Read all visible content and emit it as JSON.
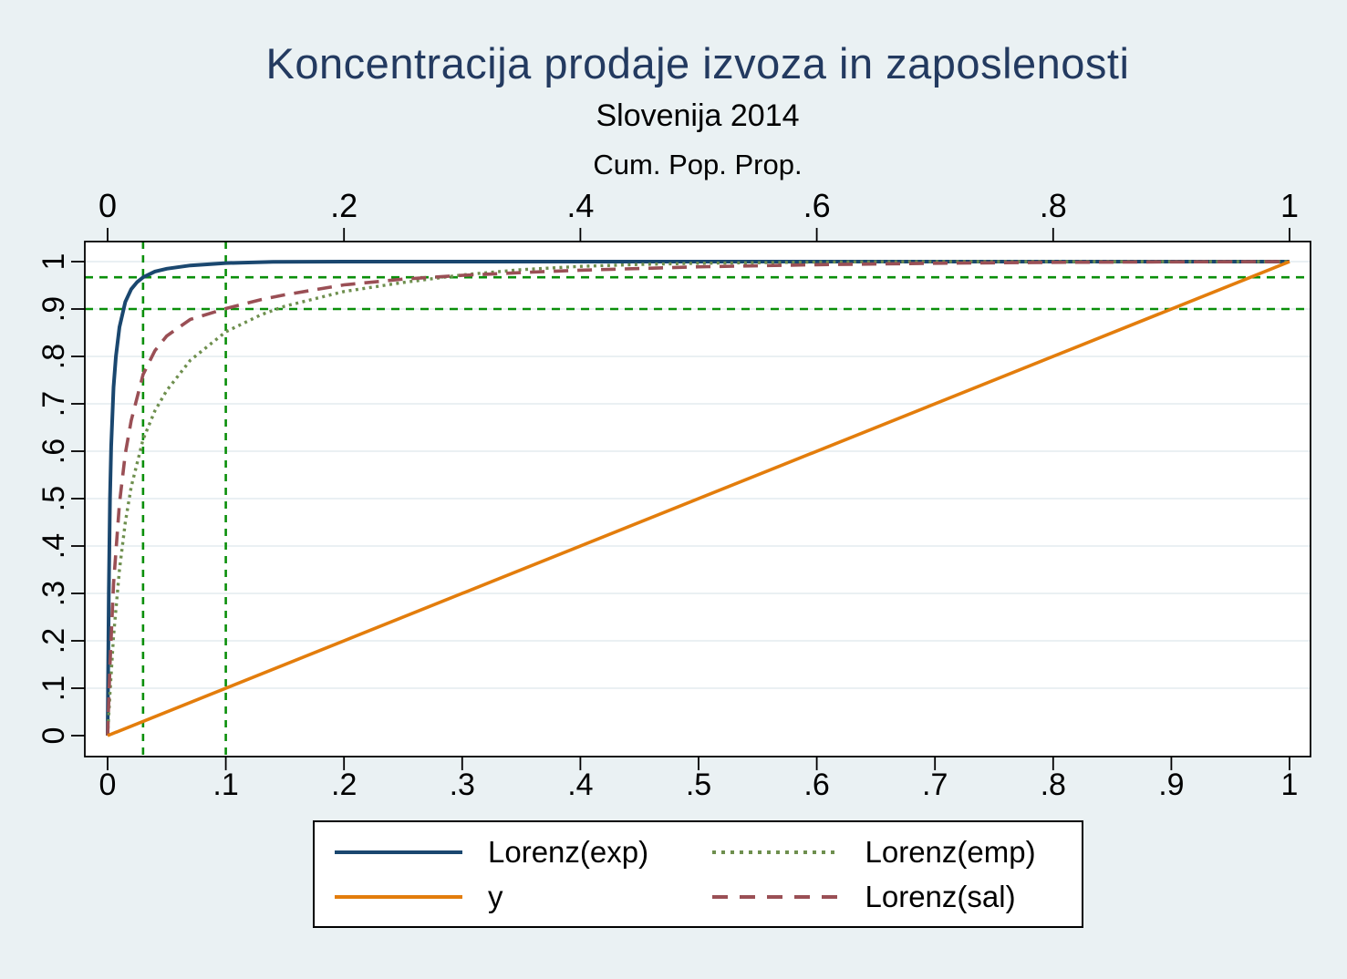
{
  "figure": {
    "colors": {
      "background": "#eaf1f3",
      "plot_background": "#ffffff",
      "border": "#000000",
      "grid": "#e4ecef",
      "title": "#233a60"
    }
  },
  "chart_data": {
    "type": "line",
    "title": "Koncentracija prodaje izvoza in zaposlenosti",
    "subtitle": "Slovenija 2014",
    "top_axis": {
      "title": "Cum. Pop. Prop.",
      "tick_labels": [
        "0",
        ".2",
        ".4",
        ".6",
        ".8",
        "1"
      ],
      "tick_values": [
        0,
        0.2,
        0.4,
        0.6,
        0.8,
        1
      ]
    },
    "bottom_axis": {
      "tick_labels": [
        "0",
        ".1",
        ".2",
        ".3",
        ".4",
        ".5",
        ".6",
        ".7",
        ".8",
        ".9",
        "1"
      ],
      "tick_values": [
        0,
        0.1,
        0.2,
        0.3,
        0.4,
        0.5,
        0.6,
        0.7,
        0.8,
        0.9,
        1
      ]
    },
    "left_axis": {
      "tick_labels": [
        "0",
        ".1",
        ".2",
        ".3",
        ".4",
        ".5",
        ".6",
        ".7",
        ".8",
        ".9",
        "1"
      ],
      "tick_values": [
        0,
        0.1,
        0.2,
        0.3,
        0.4,
        0.5,
        0.6,
        0.7,
        0.8,
        0.9,
        1
      ]
    },
    "xlim": [
      0,
      1
    ],
    "ylim": [
      0,
      1
    ],
    "grid": "horizontal-only",
    "reference_lines": {
      "color": "#0a8f0a",
      "style": "dashed",
      "vertical_x": [
        0.03,
        0.1
      ],
      "horizontal_y": [
        0.967,
        0.9
      ]
    },
    "series": [
      {
        "name": "Lorenz(exp)",
        "color": "#1a476f",
        "style": "solid",
        "width": 4,
        "points": [
          [
            0,
            0
          ],
          [
            0.001,
            0.3
          ],
          [
            0.002,
            0.5
          ],
          [
            0.003,
            0.61
          ],
          [
            0.005,
            0.735
          ],
          [
            0.007,
            0.8
          ],
          [
            0.01,
            0.862
          ],
          [
            0.015,
            0.915
          ],
          [
            0.02,
            0.942
          ],
          [
            0.025,
            0.957
          ],
          [
            0.03,
            0.967
          ],
          [
            0.04,
            0.979
          ],
          [
            0.05,
            0.985
          ],
          [
            0.07,
            0.992
          ],
          [
            0.1,
            0.997
          ],
          [
            0.14,
            0.9995
          ],
          [
            0.2,
            1
          ],
          [
            1,
            1
          ]
        ]
      },
      {
        "name": "Lorenz(emp)",
        "color": "#6e8f4e",
        "style": "dotted",
        "width": 3.4,
        "points": [
          [
            0,
            0
          ],
          [
            0.002,
            0.09
          ],
          [
            0.005,
            0.21
          ],
          [
            0.01,
            0.35
          ],
          [
            0.015,
            0.45
          ],
          [
            0.02,
            0.525
          ],
          [
            0.03,
            0.625
          ],
          [
            0.04,
            0.685
          ],
          [
            0.05,
            0.728
          ],
          [
            0.07,
            0.792
          ],
          [
            0.1,
            0.852
          ],
          [
            0.13,
            0.888
          ],
          [
            0.15,
            0.906
          ],
          [
            0.2,
            0.937
          ],
          [
            0.25,
            0.956
          ],
          [
            0.3,
            0.972
          ],
          [
            0.35,
            0.983
          ],
          [
            0.4,
            0.99
          ],
          [
            0.45,
            0.994
          ],
          [
            0.5,
            0.9965
          ],
          [
            0.6,
            0.999
          ],
          [
            0.7,
            1
          ],
          [
            1,
            1
          ]
        ]
      },
      {
        "name": "Lorenz(sal)",
        "color": "#9a4f55",
        "style": "dashed",
        "width": 3.6,
        "points": [
          [
            0,
            0
          ],
          [
            0.002,
            0.15
          ],
          [
            0.005,
            0.32
          ],
          [
            0.01,
            0.49
          ],
          [
            0.015,
            0.595
          ],
          [
            0.02,
            0.665
          ],
          [
            0.03,
            0.762
          ],
          [
            0.04,
            0.812
          ],
          [
            0.05,
            0.843
          ],
          [
            0.07,
            0.878
          ],
          [
            0.1,
            0.901
          ],
          [
            0.13,
            0.92
          ],
          [
            0.15,
            0.93
          ],
          [
            0.2,
            0.951
          ],
          [
            0.25,
            0.963
          ],
          [
            0.3,
            0.971
          ],
          [
            0.35,
            0.977
          ],
          [
            0.4,
            0.982
          ],
          [
            0.5,
            0.989
          ],
          [
            0.6,
            0.9935
          ],
          [
            0.7,
            0.9965
          ],
          [
            0.8,
            0.9985
          ],
          [
            0.9,
            0.9995
          ],
          [
            1,
            1
          ]
        ]
      },
      {
        "name": "y",
        "color": "#e37d0c",
        "style": "solid",
        "width": 3.6,
        "points": [
          [
            0,
            0
          ],
          [
            1,
            1
          ]
        ]
      }
    ],
    "legend": {
      "position": "bottom",
      "items": [
        {
          "label": "Lorenz(exp)",
          "series": "Lorenz(exp)"
        },
        {
          "label": "Lorenz(emp)",
          "series": "Lorenz(emp)"
        },
        {
          "label": "y",
          "series": "y"
        },
        {
          "label": "Lorenz(sal)",
          "series": "Lorenz(sal)"
        }
      ]
    }
  }
}
